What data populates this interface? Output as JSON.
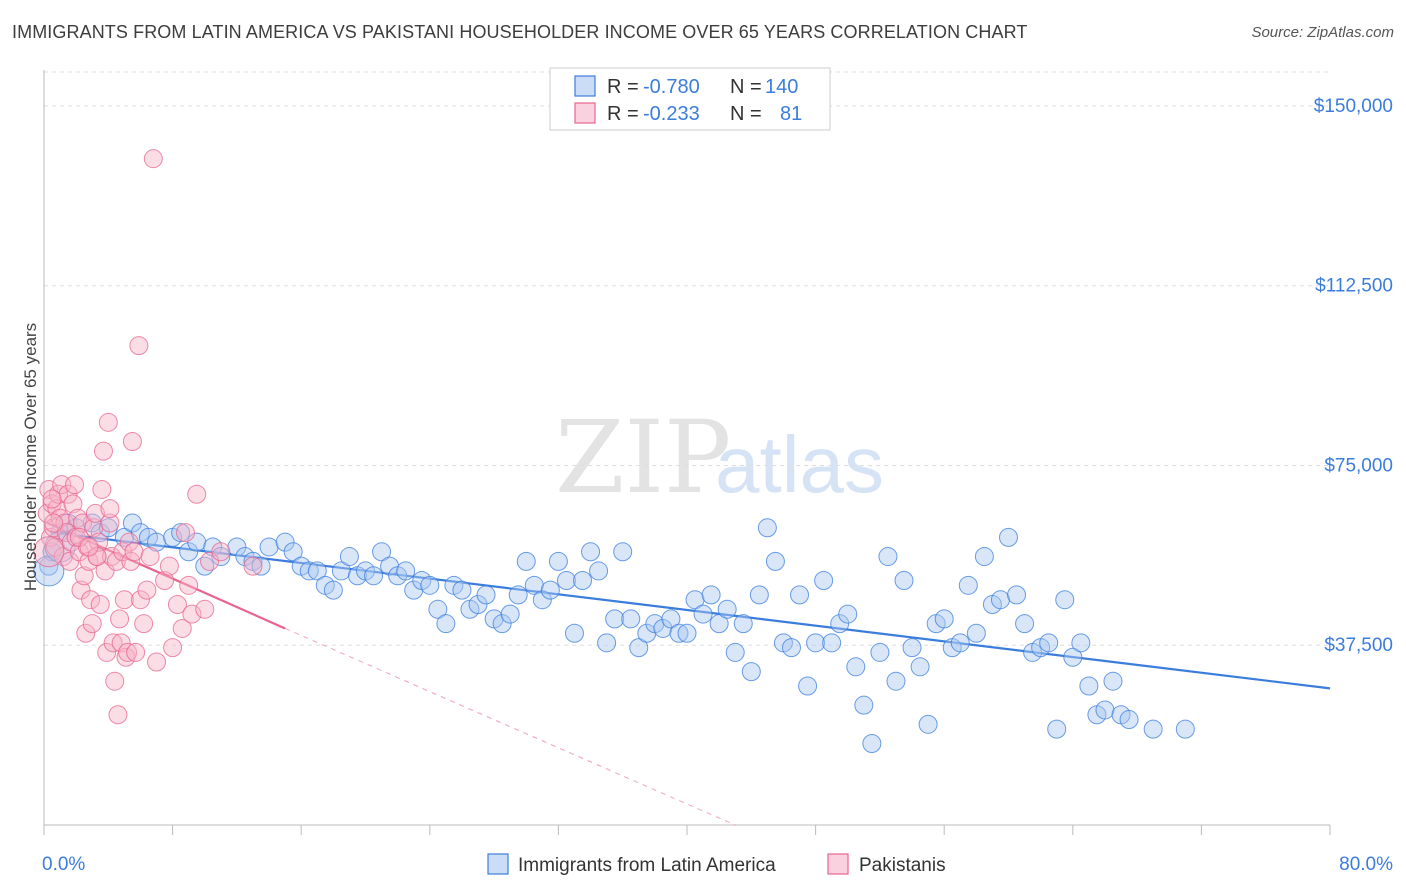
{
  "title": "IMMIGRANTS FROM LATIN AMERICA VS PAKISTANI HOUSEHOLDER INCOME OVER 65 YEARS CORRELATION CHART",
  "source": "Source: ZipAtlas.com",
  "watermark": {
    "zip": "ZIP",
    "atlas": "atlas"
  },
  "colors": {
    "blue": "#3b7ddd",
    "blue_fill": "#a9c7f0",
    "pink": "#e8648f",
    "pink_fill": "#f6b3c8",
    "grid": "#dddddd"
  },
  "legend": {
    "rows": [
      {
        "r_label": "R =",
        "r_value": "-0.780",
        "n_label": "N =",
        "n_value": "140"
      },
      {
        "r_label": "R =",
        "r_value": "-0.233",
        "n_label": "N =",
        "n_value": "81"
      }
    ]
  },
  "chart_data": {
    "type": "scatter",
    "ylabel": "Householder Income Over 65 years",
    "xlim": [
      0,
      80
    ],
    "ylim": [
      0,
      157500
    ],
    "x_tick_labels": [
      "0.0%",
      "80.0%"
    ],
    "y_ticks": [
      {
        "value": 37500,
        "label": "$37,500"
      },
      {
        "value": 75000,
        "label": "$75,000"
      },
      {
        "value": 112500,
        "label": "$112,500"
      },
      {
        "value": 150000,
        "label": "$150,000"
      }
    ],
    "grid": true,
    "legend_position": "top-center",
    "series": [
      {
        "name": "Immigrants from Latin America",
        "trend": {
          "x": [
            0.5,
            80
          ],
          "y": [
            61000,
            28500
          ]
        },
        "points": [
          [
            0.3,
            54000
          ],
          [
            0.5,
            57000
          ],
          [
            1,
            61000
          ],
          [
            1.5,
            63000
          ],
          [
            2,
            62000
          ],
          [
            3,
            63000
          ],
          [
            3.5,
            61000
          ],
          [
            4,
            62000
          ],
          [
            5,
            60000
          ],
          [
            5.5,
            63000
          ],
          [
            6,
            61000
          ],
          [
            6.5,
            60000
          ],
          [
            7,
            59000
          ],
          [
            8,
            60000
          ],
          [
            8.5,
            61000
          ],
          [
            9,
            57000
          ],
          [
            9.5,
            59000
          ],
          [
            10,
            54000
          ],
          [
            10.5,
            58000
          ],
          [
            11,
            56000
          ],
          [
            12,
            58000
          ],
          [
            12.5,
            56000
          ],
          [
            13,
            55000
          ],
          [
            13.5,
            54000
          ],
          [
            14,
            58000
          ],
          [
            15,
            59000
          ],
          [
            15.5,
            57000
          ],
          [
            16,
            54000
          ],
          [
            16.5,
            53000
          ],
          [
            17,
            53000
          ],
          [
            17.5,
            50000
          ],
          [
            18,
            49000
          ],
          [
            18.5,
            53000
          ],
          [
            19,
            56000
          ],
          [
            19.5,
            52000
          ],
          [
            20,
            53000
          ],
          [
            20.5,
            52000
          ],
          [
            21,
            57000
          ],
          [
            21.5,
            54000
          ],
          [
            22,
            52000
          ],
          [
            22.5,
            53000
          ],
          [
            23,
            49000
          ],
          [
            23.5,
            51000
          ],
          [
            24,
            50000
          ],
          [
            24.5,
            45000
          ],
          [
            25,
            42000
          ],
          [
            25.5,
            50000
          ],
          [
            26,
            49000
          ],
          [
            26.5,
            45000
          ],
          [
            27,
            46000
          ],
          [
            27.5,
            48000
          ],
          [
            28,
            43000
          ],
          [
            28.5,
            42000
          ],
          [
            29,
            44000
          ],
          [
            29.5,
            48000
          ],
          [
            30,
            55000
          ],
          [
            30.5,
            50000
          ],
          [
            31,
            47000
          ],
          [
            31.5,
            49000
          ],
          [
            32,
            55000
          ],
          [
            32.5,
            51000
          ],
          [
            33,
            40000
          ],
          [
            33.5,
            51000
          ],
          [
            34,
            57000
          ],
          [
            34.5,
            53000
          ],
          [
            35,
            38000
          ],
          [
            35.5,
            43000
          ],
          [
            36,
            57000
          ],
          [
            36.5,
            43000
          ],
          [
            37,
            37000
          ],
          [
            37.5,
            40000
          ],
          [
            38,
            42000
          ],
          [
            38.5,
            41000
          ],
          [
            39,
            43000
          ],
          [
            39.5,
            40000
          ],
          [
            40,
            40000
          ],
          [
            40.5,
            47000
          ],
          [
            41,
            44000
          ],
          [
            41.5,
            48000
          ],
          [
            42,
            42000
          ],
          [
            42.5,
            45000
          ],
          [
            43,
            36000
          ],
          [
            43.5,
            42000
          ],
          [
            44,
            32000
          ],
          [
            44.5,
            48000
          ],
          [
            45,
            62000
          ],
          [
            45.5,
            55000
          ],
          [
            46,
            38000
          ],
          [
            46.5,
            37000
          ],
          [
            47,
            48000
          ],
          [
            47.5,
            29000
          ],
          [
            48,
            38000
          ],
          [
            48.5,
            51000
          ],
          [
            49,
            38000
          ],
          [
            49.5,
            42000
          ],
          [
            50,
            44000
          ],
          [
            50.5,
            33000
          ],
          [
            51,
            25000
          ],
          [
            51.5,
            17000
          ],
          [
            52,
            36000
          ],
          [
            52.5,
            56000
          ],
          [
            53,
            30000
          ],
          [
            53.5,
            51000
          ],
          [
            54,
            37000
          ],
          [
            54.5,
            33000
          ],
          [
            55,
            21000
          ],
          [
            55.5,
            42000
          ],
          [
            56,
            43000
          ],
          [
            56.5,
            37000
          ],
          [
            57,
            38000
          ],
          [
            57.5,
            50000
          ],
          [
            58,
            40000
          ],
          [
            58.5,
            56000
          ],
          [
            59,
            46000
          ],
          [
            59.5,
            47000
          ],
          [
            60,
            60000
          ],
          [
            60.5,
            48000
          ],
          [
            61,
            42000
          ],
          [
            61.5,
            36000
          ],
          [
            62,
            37000
          ],
          [
            62.5,
            38000
          ],
          [
            63,
            20000
          ],
          [
            63.5,
            47000
          ],
          [
            64,
            35000
          ],
          [
            64.5,
            38000
          ],
          [
            65,
            29000
          ],
          [
            65.5,
            23000
          ],
          [
            66,
            24000
          ],
          [
            66.5,
            30000
          ],
          [
            67,
            23000
          ],
          [
            67.5,
            22000
          ],
          [
            69,
            20000
          ],
          [
            71,
            20000
          ]
        ],
        "big_points": [
          [
            0.3,
            53000
          ],
          [
            1,
            58000
          ]
        ]
      },
      {
        "name": "Pakistanis",
        "trend": {
          "x": [
            0.2,
            15
          ],
          "y": [
            63000,
            41000
          ]
        },
        "trend_dashed": {
          "x": [
            15,
            43
          ],
          "y": [
            41000,
            0
          ]
        },
        "points": [
          [
            0.2,
            65000
          ],
          [
            0.3,
            70000
          ],
          [
            0.4,
            60000
          ],
          [
            0.5,
            67000
          ],
          [
            0.6,
            62000
          ],
          [
            0.7,
            58000
          ],
          [
            0.8,
            66000
          ],
          [
            0.9,
            69000
          ],
          [
            1,
            64000
          ],
          [
            1.1,
            71000
          ],
          [
            1.2,
            56000
          ],
          [
            1.3,
            63000
          ],
          [
            1.4,
            61000
          ],
          [
            1.5,
            69000
          ],
          [
            1.6,
            55000
          ],
          [
            1.7,
            59000
          ],
          [
            1.8,
            67000
          ],
          [
            2,
            60000
          ],
          [
            2.1,
            64000
          ],
          [
            2.2,
            57000
          ],
          [
            2.3,
            49000
          ],
          [
            2.4,
            63000
          ],
          [
            2.5,
            52000
          ],
          [
            2.6,
            40000
          ],
          [
            2.7,
            58000
          ],
          [
            2.8,
            55000
          ],
          [
            2.9,
            47000
          ],
          [
            3,
            42000
          ],
          [
            3.1,
            62000
          ],
          [
            3.2,
            65000
          ],
          [
            3.3,
            56000
          ],
          [
            3.4,
            59000
          ],
          [
            3.5,
            46000
          ],
          [
            3.6,
            70000
          ],
          [
            3.7,
            78000
          ],
          [
            3.8,
            53000
          ],
          [
            3.9,
            36000
          ],
          [
            4,
            84000
          ],
          [
            4.1,
            63000
          ],
          [
            4.2,
            56000
          ],
          [
            4.3,
            38000
          ],
          [
            4.4,
            30000
          ],
          [
            4.5,
            55000
          ],
          [
            4.6,
            23000
          ],
          [
            4.7,
            43000
          ],
          [
            4.8,
            38000
          ],
          [
            4.9,
            57000
          ],
          [
            5,
            47000
          ],
          [
            5.1,
            35000
          ],
          [
            5.2,
            36000
          ],
          [
            5.3,
            59000
          ],
          [
            5.4,
            55000
          ],
          [
            5.5,
            80000
          ],
          [
            5.6,
            57000
          ],
          [
            5.7,
            36000
          ],
          [
            5.9,
            100000
          ],
          [
            6,
            47000
          ],
          [
            6.2,
            42000
          ],
          [
            6.4,
            49000
          ],
          [
            6.6,
            56000
          ],
          [
            7,
            34000
          ],
          [
            7.5,
            51000
          ],
          [
            7.8,
            54000
          ],
          [
            8,
            37000
          ],
          [
            8.3,
            46000
          ],
          [
            8.6,
            41000
          ],
          [
            8.8,
            61000
          ],
          [
            9,
            50000
          ],
          [
            9.2,
            44000
          ],
          [
            9.5,
            69000
          ],
          [
            10,
            45000
          ],
          [
            10.3,
            55000
          ],
          [
            11,
            57000
          ],
          [
            13,
            54000
          ],
          [
            6.8,
            139000
          ],
          [
            0.5,
            68000
          ],
          [
            0.6,
            63000
          ],
          [
            1.9,
            71000
          ],
          [
            2.2,
            60000
          ],
          [
            3.3,
            56000
          ],
          [
            2.8,
            58000
          ],
          [
            4.1,
            66000
          ]
        ],
        "big_points": [
          [
            0.3,
            57000
          ]
        ]
      }
    ]
  },
  "bottom_legend": {
    "items": [
      "Immigrants from Latin America",
      "Pakistanis"
    ]
  }
}
